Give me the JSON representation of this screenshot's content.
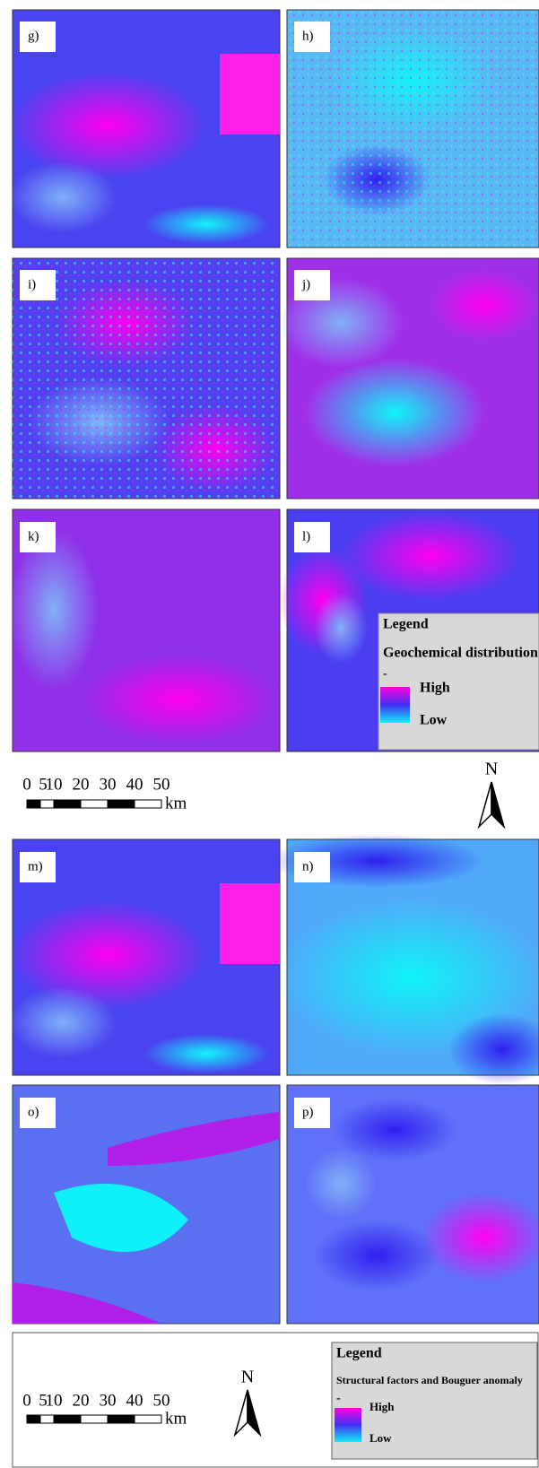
{
  "panels": [
    {
      "label": "g)"
    },
    {
      "label": "h)"
    },
    {
      "label": "i)"
    },
    {
      "label": "j)"
    },
    {
      "label": "k)"
    },
    {
      "label": "l)"
    },
    {
      "label": "m)"
    },
    {
      "label": "n)"
    },
    {
      "label": "o)"
    },
    {
      "label": "p)"
    }
  ],
  "legend_top": {
    "title": "Legend",
    "subtitle": "Geochemical distribution",
    "dash": "-",
    "high": "High",
    "low": "Low"
  },
  "legend_bottom": {
    "title": "Legend",
    "subtitle": "Structural factors and Bouguer anomaly",
    "dash": "-",
    "high": "High",
    "low": "Low"
  },
  "scale_top": {
    "ticks": [
      0,
      5,
      10,
      20,
      30,
      40,
      50
    ],
    "unit": "km"
  },
  "scale_bottom": {
    "ticks": [
      0,
      5,
      10,
      20,
      30,
      40,
      50
    ],
    "unit": "km"
  },
  "north_top": "N",
  "north_bottom": "N"
}
